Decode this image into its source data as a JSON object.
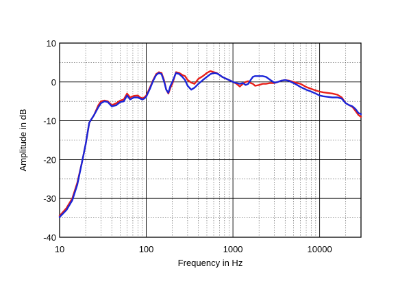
{
  "chart_data": {
    "type": "line",
    "title": "",
    "xlabel": "Frequency in Hz",
    "ylabel": "Amplitude in dB",
    "x_scale": "log",
    "xlim": [
      10,
      30000
    ],
    "ylim": [
      -40,
      10
    ],
    "grid": true,
    "legend": "none",
    "x_ticks": [
      10,
      100,
      1000,
      10000
    ],
    "x_tick_labels": [
      "10",
      "100",
      "1000",
      "10000"
    ],
    "y_ticks": [
      10,
      0,
      -10,
      -20,
      -30,
      -40
    ],
    "y_tick_labels": [
      "10",
      "0",
      "-10",
      "-20",
      "-30",
      "-40"
    ],
    "series": [
      {
        "color": "#e8201a",
        "x": [
          10,
          12,
          14,
          16,
          18,
          20,
          22,
          25,
          28,
          30,
          33,
          36,
          40,
          45,
          50,
          55,
          60,
          65,
          68,
          72,
          80,
          85,
          90,
          95,
          100,
          110,
          120,
          130,
          140,
          150,
          160,
          170,
          180,
          190,
          200,
          220,
          240,
          260,
          280,
          300,
          330,
          360,
          400,
          450,
          500,
          550,
          600,
          650,
          700,
          750,
          800,
          900,
          1000,
          1100,
          1200,
          1300,
          1400,
          1500,
          1600,
          1700,
          1800,
          2000,
          2200,
          2400,
          2700,
          3000,
          3300,
          3600,
          4000,
          4500,
          5000,
          5500,
          6000,
          7000,
          8000,
          9000,
          10000,
          11000,
          12000,
          14000,
          16000,
          18000,
          20000,
          22000,
          24000,
          26000,
          28000,
          30000
        ],
        "y": [
          -34.5,
          -32.5,
          -30,
          -26,
          -21,
          -16,
          -10.5,
          -8.5,
          -6,
          -5,
          -4.8,
          -5,
          -6,
          -5.5,
          -4.8,
          -4.5,
          -3,
          -4,
          -3.8,
          -3.6,
          -3.5,
          -4,
          -4.2,
          -4,
          -3.5,
          -1.5,
          0.5,
          2,
          2.5,
          2.3,
          0.5,
          -2,
          -3,
          -1.5,
          -0.5,
          2.5,
          2.3,
          1.8,
          1.5,
          0.5,
          -0.2,
          -0.5,
          0.8,
          1.5,
          2.3,
          2.8,
          2.5,
          2.3,
          1.8,
          1.3,
          1,
          0.5,
          0,
          -0.5,
          -1.2,
          -0.5,
          0,
          0.2,
          -0.3,
          -0.5,
          -1,
          -0.8,
          -0.5,
          -0.5,
          -0.3,
          -0.3,
          0,
          0.3,
          0.5,
          0.3,
          0,
          -0.3,
          -0.5,
          -1.3,
          -1.8,
          -2.2,
          -2.5,
          -2.7,
          -2.8,
          -3,
          -3.3,
          -4,
          -5.5,
          -6,
          -6.5,
          -7.5,
          -8.5,
          -9
        ],
        "name": ""
      },
      {
        "color": "#1a25d8",
        "x": [
          10,
          12,
          14,
          16,
          18,
          20,
          22,
          25,
          28,
          30,
          33,
          36,
          40,
          45,
          50,
          55,
          60,
          65,
          68,
          72,
          80,
          85,
          90,
          95,
          100,
          110,
          120,
          130,
          140,
          150,
          160,
          170,
          180,
          190,
          200,
          220,
          240,
          260,
          280,
          300,
          330,
          360,
          400,
          450,
          500,
          550,
          600,
          650,
          700,
          750,
          800,
          900,
          1000,
          1100,
          1200,
          1300,
          1400,
          1500,
          1600,
          1700,
          1800,
          2000,
          2200,
          2400,
          2700,
          3000,
          3300,
          3600,
          4000,
          4500,
          5000,
          5500,
          6000,
          7000,
          8000,
          9000,
          10000,
          11000,
          12000,
          14000,
          16000,
          18000,
          20000,
          22000,
          24000,
          26000,
          28000,
          30000
        ],
        "y": [
          -34.8,
          -33,
          -30.5,
          -26.5,
          -21,
          -16,
          -10.5,
          -8.5,
          -6.5,
          -5.5,
          -5,
          -5.2,
          -6.3,
          -6,
          -5.2,
          -5,
          -3.5,
          -4.5,
          -4.3,
          -4,
          -4,
          -4.3,
          -4.5,
          -4.3,
          -3.8,
          -1.8,
          0.3,
          1.8,
          2.3,
          2,
          0.2,
          -2,
          -2.8,
          -1,
          0,
          2.3,
          2,
          1.3,
          0.5,
          -1,
          -2,
          -1.5,
          -0.5,
          0.5,
          1.3,
          2,
          2.3,
          2.2,
          1.8,
          1.3,
          1,
          0.5,
          0,
          -0.3,
          -0.5,
          -0.3,
          -0.8,
          -0.5,
          0.5,
          1.3,
          1.5,
          1.5,
          1.5,
          1.3,
          0.5,
          -0.2,
          0,
          0.3,
          0.5,
          0.2,
          -0.3,
          -0.8,
          -1.3,
          -2,
          -2.5,
          -3,
          -3.5,
          -3.7,
          -3.8,
          -4,
          -4,
          -4.3,
          -5.5,
          -6,
          -6.3,
          -7,
          -8,
          -8.3
        ],
        "name": ""
      }
    ]
  }
}
